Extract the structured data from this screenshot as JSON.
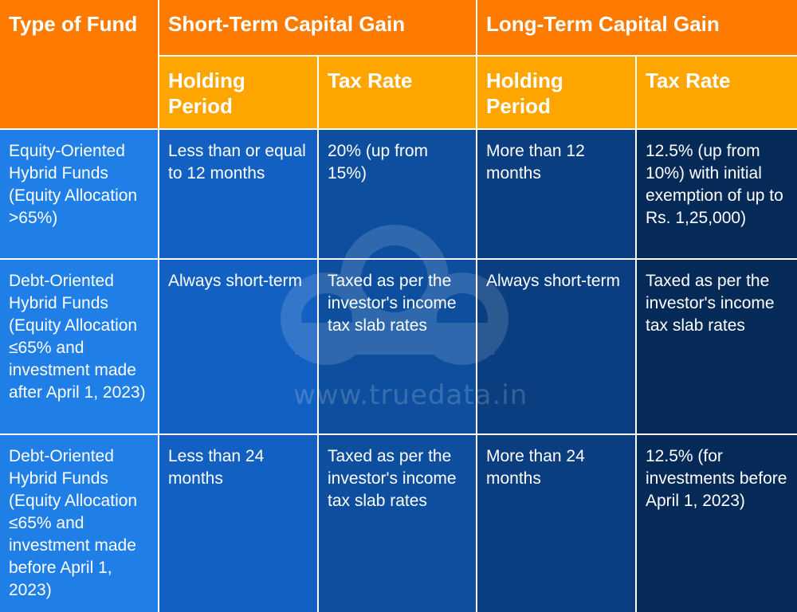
{
  "headers": {
    "type_of_fund": "Type of Fund",
    "stcg": "Short-Term Capital Gain",
    "ltcg": "Long-Term Capital Gain",
    "stcg_holding": "Holding Period",
    "stcg_rate": "Tax Rate",
    "ltcg_holding": "Holding Period",
    "ltcg_rate": "Tax Rate"
  },
  "rows": [
    {
      "fund": "Equity-Oriented Hybrid Funds (Equity Allocation >65%)",
      "stcg_holding": "Less than or equal to 12 months",
      "stcg_rate": "20% (up from 15%)",
      "ltcg_holding": "More than 12 months",
      "ltcg_rate": "12.5% (up from 10%) with initial exemption of up to Rs. 1,25,000)"
    },
    {
      "fund": "Debt-Oriented Hybrid Funds (Equity Allocation ≤65% and investment made after April 1, 2023)",
      "stcg_holding": "Always short-term",
      "stcg_rate": "Taxed as per the investor's income tax slab rates",
      "ltcg_holding": "Always short-term",
      "ltcg_rate": "Taxed as per the investor's income tax slab rates"
    },
    {
      "fund": "Debt-Oriented Hybrid Funds (Equity Allocation ≤65% and investment made before April 1, 2023)",
      "stcg_holding": "Less than 24 months",
      "stcg_rate": "Taxed as per the investor's income tax slab rates",
      "ltcg_holding": "More than 24 months",
      "ltcg_rate": "12.5% (for investments before April 1, 2023)"
    }
  ],
  "watermark": {
    "text": "www.truedata.in",
    "icon": "truedata-logo-icon"
  },
  "colors": {
    "header_main": "#ff7b00",
    "header_sub": "#ffa500",
    "col1": "#1f7fe6",
    "col5": "#062a57"
  }
}
